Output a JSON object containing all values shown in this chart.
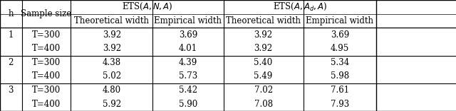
{
  "ets1_label": "ETS($A, N, A$)",
  "ets2_label": "ETS($A, A_d, A$)",
  "sub_headers": [
    "Theoretical width",
    "Empirical width",
    "Theoretical width",
    "Empirical width"
  ],
  "rows": [
    {
      "h": "1",
      "sample": "T=300",
      "v": [
        "3.92",
        "3.69",
        "3.92",
        "3.69"
      ]
    },
    {
      "h": "",
      "sample": "T=400",
      "v": [
        "3.92",
        "4.01",
        "3.92",
        "4.95"
      ]
    },
    {
      "h": "2",
      "sample": "T=300",
      "v": [
        "4.38",
        "4.39",
        "5.40",
        "5.34"
      ]
    },
    {
      "h": "",
      "sample": "T=400",
      "v": [
        "5.02",
        "5.73",
        "5.49",
        "5.98"
      ]
    },
    {
      "h": "3",
      "sample": "T=300",
      "v": [
        "4.80",
        "5.42",
        "7.02",
        "7.61"
      ]
    },
    {
      "h": "",
      "sample": "T=400",
      "v": [
        "5.92",
        "5.90",
        "7.08",
        "7.93"
      ]
    }
  ],
  "bg_color": "#ffffff",
  "line_color": "#000000",
  "font_size": 8.5,
  "col_boundaries": [
    0.0,
    0.048,
    0.155,
    0.335,
    0.49,
    0.665,
    0.825,
    1.0
  ]
}
